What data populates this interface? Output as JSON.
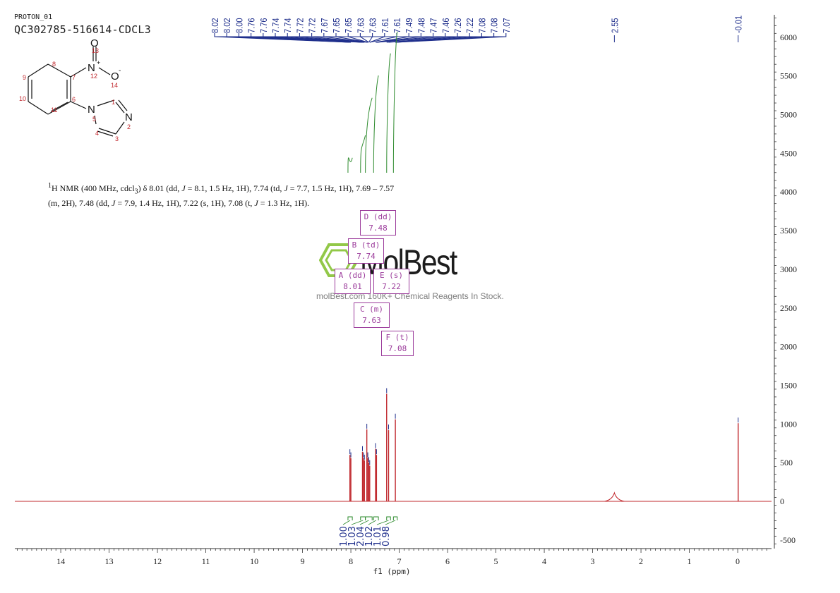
{
  "header": {
    "experiment": "PROTON_01",
    "sample": "QC302785-516614-CDCL3"
  },
  "description": {
    "line1_html": "<sup>1</sup>H NMR (400 MHz, cdcl<sub>3</sub>) δ 8.01 (dd, <i>J</i> = 8.1, 1.5 Hz, 1H), 7.74 (td, <i>J</i> = 7.7, 1.5 Hz, 1H), 7.69 – 7.57",
    "line2_html": "(m, 2H), 7.48 (dd, <i>J</i> = 7.9, 1.4 Hz, 1H), 7.22 (s, 1H), 7.08 (t, <i>J</i> = 1.3 Hz, 1H)."
  },
  "watermark": {
    "name": "MolBest",
    "tagline": "molBest.com 160K+ Chemical Reagents In Stock."
  },
  "molecule": {
    "atom_labels": [
      "N",
      "+",
      "12",
      "O",
      "13",
      "O",
      "-",
      "14",
      "N",
      "5",
      "N",
      "2",
      "1",
      "3",
      "4",
      "6",
      "7",
      "8",
      "9",
      "10",
      "11"
    ]
  },
  "multiplets": [
    {
      "label": "A (dd)",
      "shift": "8.01"
    },
    {
      "label": "B (td)",
      "shift": "7.74"
    },
    {
      "label": "C (m)",
      "shift": "7.63"
    },
    {
      "label": "D (dd)",
      "shift": "7.48"
    },
    {
      "label": "E (s)",
      "shift": "7.22"
    },
    {
      "label": "F (t)",
      "shift": "7.08"
    }
  ],
  "colors": {
    "spectrum": "#c0282d",
    "peak_labels": "#1f2f8c",
    "integral": "#2e8b2e",
    "multiplet_box": "#9b3b9b",
    "watermark_logo": "#8dc63f"
  },
  "chart_data": {
    "type": "line",
    "title": "",
    "xlabel": "f1 (ppm)",
    "ylabel": "",
    "x_reversed": true,
    "xlim": [
      14.95,
      -0.7
    ],
    "ylim": [
      -600,
      6300
    ],
    "x_ticks": [
      14,
      13,
      12,
      11,
      10,
      9,
      8,
      7,
      6,
      5,
      4,
      3,
      2,
      1,
      0
    ],
    "y_ticks": [
      -500,
      0,
      500,
      1000,
      1500,
      2000,
      2500,
      3000,
      3500,
      4000,
      4500,
      5000,
      5500,
      6000
    ],
    "peak_labels": [
      "8.02",
      "8.02",
      "8.00",
      "7.76",
      "7.76",
      "7.74",
      "7.74",
      "7.72",
      "7.72",
      "7.67",
      "7.65",
      "7.65",
      "7.63",
      "7.63",
      "7.61",
      "7.61",
      "7.49",
      "7.48",
      "7.47",
      "7.46",
      "7.26",
      "7.22",
      "7.08",
      "7.08",
      "7.07",
      "2.55",
      "-0.01"
    ],
    "peaks": [
      {
        "ppm": 8.02,
        "h": 600
      },
      {
        "ppm": 8.0,
        "h": 560
      },
      {
        "ppm": 7.76,
        "h": 640
      },
      {
        "ppm": 7.74,
        "h": 560
      },
      {
        "ppm": 7.72,
        "h": 530
      },
      {
        "ppm": 7.67,
        "h": 930
      },
      {
        "ppm": 7.65,
        "h": 560
      },
      {
        "ppm": 7.63,
        "h": 500
      },
      {
        "ppm": 7.61,
        "h": 460
      },
      {
        "ppm": 7.49,
        "h": 680
      },
      {
        "ppm": 7.47,
        "h": 600
      },
      {
        "ppm": 7.26,
        "h": 1390
      },
      {
        "ppm": 7.22,
        "h": 920
      },
      {
        "ppm": 7.08,
        "h": 1060
      },
      {
        "ppm": 2.55,
        "h": 110
      },
      {
        "ppm": -0.01,
        "h": 1010
      }
    ],
    "integrals": [
      {
        "from": 8.06,
        "to": 7.97,
        "value": "1.00"
      },
      {
        "from": 7.8,
        "to": 7.7,
        "value": "1.03"
      },
      {
        "from": 7.7,
        "to": 7.56,
        "value": "2.04"
      },
      {
        "from": 7.53,
        "to": 7.43,
        "value": "1.02"
      },
      {
        "from": 7.26,
        "to": 7.18,
        "value": "1.01"
      },
      {
        "from": 7.12,
        "to": 7.04,
        "value": "0.98"
      }
    ]
  }
}
